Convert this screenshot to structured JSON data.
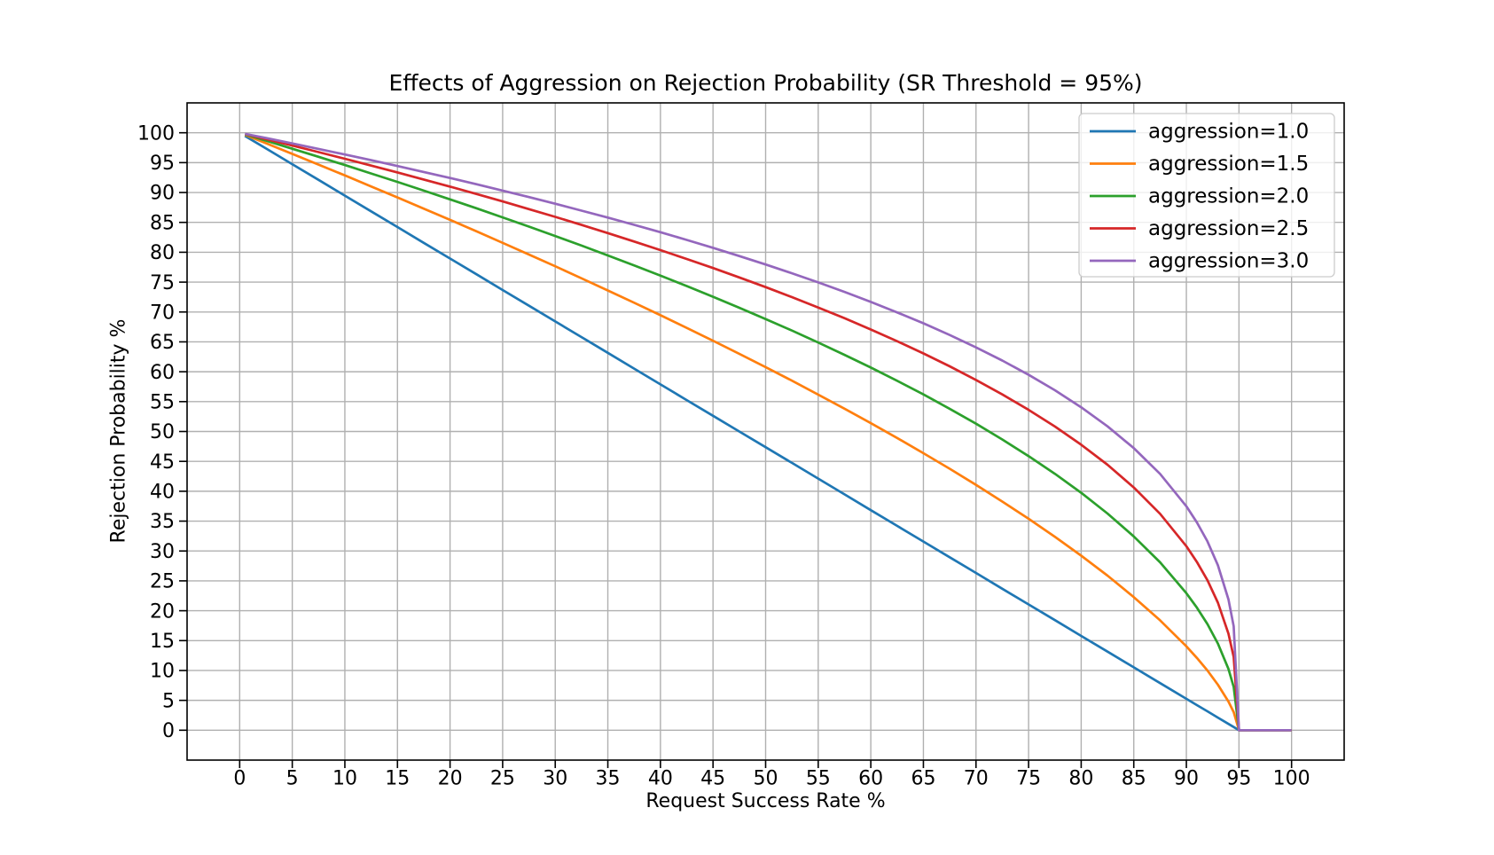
{
  "colors": {
    "background": "#ffffff",
    "grid": "#b0b0b0",
    "spine": "#000000",
    "text": "#000000",
    "legend_border": "#cccccc"
  },
  "chart_data": {
    "type": "line",
    "title": "Effects of Aggression on Rejection Probability (SR Threshold = 95%)",
    "xlabel": "Request Success Rate %",
    "ylabel": "Rejection Probability %",
    "xlim": [
      -5,
      105
    ],
    "ylim": [
      -5,
      105
    ],
    "xticks": [
      0,
      5,
      10,
      15,
      20,
      25,
      30,
      35,
      40,
      45,
      50,
      55,
      60,
      65,
      70,
      75,
      80,
      85,
      90,
      95,
      100
    ],
    "yticks": [
      0,
      5,
      10,
      15,
      20,
      25,
      30,
      35,
      40,
      45,
      50,
      55,
      60,
      65,
      70,
      75,
      80,
      85,
      90,
      95,
      100
    ],
    "grid": true,
    "legend_position": "upper-right",
    "x": [
      0.5,
      2.5,
      5,
      7.5,
      10,
      12.5,
      15,
      17.5,
      20,
      22.5,
      25,
      27.5,
      30,
      32.5,
      35,
      37.5,
      40,
      42.5,
      45,
      47.5,
      50,
      52.5,
      55,
      57.5,
      60,
      62.5,
      65,
      67.5,
      70,
      72.5,
      75,
      77.5,
      80,
      82.5,
      85,
      87.5,
      90,
      91,
      92,
      93,
      94,
      94.5,
      95,
      100
    ],
    "series": [
      {
        "name": "aggression=1.0",
        "color": "#1f77b4",
        "values": [
          99.47,
          97.37,
          94.74,
          92.11,
          89.47,
          86.84,
          84.21,
          81.58,
          78.95,
          76.32,
          73.68,
          71.05,
          68.42,
          65.79,
          63.16,
          60.53,
          57.89,
          55.26,
          52.63,
          50.0,
          47.37,
          44.74,
          42.11,
          39.47,
          36.84,
          34.21,
          31.58,
          28.95,
          26.32,
          23.68,
          21.05,
          18.42,
          15.79,
          13.16,
          10.53,
          7.89,
          5.26,
          4.21,
          3.16,
          2.11,
          1.05,
          0.53,
          0,
          0
        ]
      },
      {
        "name": "aggression=1.5",
        "color": "#ff7f0e",
        "values": [
          99.65,
          98.24,
          96.46,
          94.67,
          92.85,
          91.02,
          89.18,
          87.31,
          85.42,
          83.51,
          81.58,
          79.62,
          77.65,
          75.64,
          73.61,
          71.55,
          69.46,
          67.34,
          65.19,
          63.0,
          60.77,
          58.5,
          56.18,
          53.81,
          51.4,
          48.92,
          46.37,
          43.76,
          41.07,
          38.28,
          35.39,
          32.37,
          29.21,
          25.87,
          22.29,
          18.4,
          14.05,
          12.1,
          9.99,
          7.62,
          4.8,
          3.03,
          0,
          0
        ]
      },
      {
        "name": "aggression=2.0",
        "color": "#2ca02c",
        "values": [
          99.74,
          98.68,
          97.33,
          95.97,
          94.59,
          93.19,
          91.77,
          90.32,
          88.85,
          87.36,
          85.84,
          84.29,
          82.72,
          81.11,
          79.47,
          77.79,
          76.09,
          74.34,
          72.55,
          70.71,
          68.82,
          66.89,
          64.89,
          62.83,
          60.7,
          58.49,
          56.2,
          53.8,
          51.3,
          48.67,
          45.88,
          42.92,
          39.74,
          36.27,
          32.44,
          28.1,
          22.94,
          20.52,
          17.77,
          14.51,
          10.26,
          7.25,
          0,
          0
        ]
      },
      {
        "name": "aggression=2.5",
        "color": "#d62728",
        "values": [
          99.79,
          98.94,
          97.86,
          96.76,
          95.65,
          94.51,
          93.36,
          92.18,
          90.98,
          89.75,
          88.5,
          87.22,
          85.92,
          84.58,
          83.21,
          81.8,
          80.36,
          78.88,
          77.36,
          75.79,
          74.16,
          72.49,
          70.75,
          68.95,
          67.07,
          65.11,
          63.06,
          60.91,
          58.63,
          56.2,
          53.62,
          50.83,
          47.79,
          44.43,
          40.64,
          36.22,
          30.8,
          28.17,
          25.11,
          21.35,
          16.17,
          12.26,
          0,
          0
        ]
      },
      {
        "name": "aggression=3.0",
        "color": "#9467bd",
        "values": [
          99.82,
          99.12,
          98.21,
          97.3,
          96.36,
          95.41,
          94.43,
          93.44,
          92.42,
          91.38,
          90.32,
          89.23,
          88.12,
          86.97,
          85.8,
          84.59,
          83.35,
          82.06,
          80.74,
          79.37,
          77.95,
          76.48,
          74.95,
          73.36,
          71.69,
          69.94,
          68.11,
          66.15,
          64.08,
          61.87,
          59.49,
          56.9,
          54.05,
          50.86,
          47.22,
          42.9,
          37.48,
          34.79,
          31.61,
          27.61,
          21.9,
          17.4,
          0,
          0
        ]
      }
    ]
  }
}
